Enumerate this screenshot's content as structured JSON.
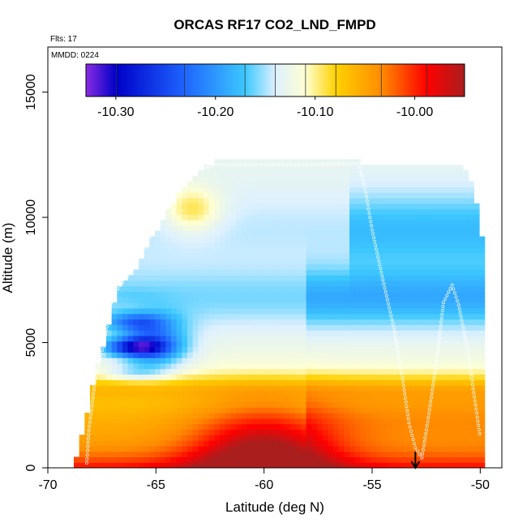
{
  "chart_data": {
    "type": "heatmap",
    "title": "ORCAS RF17 CO2_LND_FMPD",
    "annotations": {
      "flights": "Flts: 17",
      "date": "MMDD: 0224"
    },
    "xlabel": "Latitude (deg N)",
    "ylabel": "Altitude (m)",
    "xlim": [
      -70,
      -49
    ],
    "ylim": [
      0,
      16800
    ],
    "x_ticks": [
      -70,
      -65,
      -60,
      -55,
      -50
    ],
    "x_tick_labels": [
      "-70",
      "-65",
      "-60",
      "-55",
      "-50"
    ],
    "y_ticks": [
      0,
      5000,
      10000,
      15000
    ],
    "y_tick_labels": [
      "0",
      "5000",
      "10000",
      "15000"
    ],
    "colorbar": {
      "range": [
        -10.33,
        -9.95
      ],
      "ticks": [
        -10.3,
        -10.2,
        -10.1,
        -10.0
      ],
      "tick_labels": [
        "-10.30",
        "-10.20",
        "-10.10",
        "-10.00"
      ],
      "colors": [
        "#8a2be2",
        "#0000c8",
        "#1e64ff",
        "#3cc8ff",
        "#dcf0ff",
        "#ffffd2",
        "#ffd200",
        "#ff8c00",
        "#ff0000",
        "#aa1e1e"
      ]
    },
    "flight_track": [
      [
        -68.2,
        200
      ],
      [
        -68.1,
        1500
      ],
      [
        -67.8,
        3600
      ],
      [
        -67.4,
        5000
      ],
      [
        -67.0,
        6900
      ],
      [
        -66.2,
        7800
      ],
      [
        -65.1,
        9500
      ],
      [
        -64.3,
        10800
      ],
      [
        -63.6,
        11800
      ],
      [
        -62.2,
        12100
      ],
      [
        -60.5,
        12100
      ],
      [
        -58.0,
        12100
      ],
      [
        -55.6,
        12150
      ],
      [
        -55.3,
        11000
      ],
      [
        -55.0,
        9500
      ],
      [
        -54.5,
        7500
      ],
      [
        -54.0,
        5600
      ],
      [
        -53.6,
        3600
      ],
      [
        -53.3,
        1800
      ],
      [
        -53.0,
        800
      ],
      [
        -52.7,
        400
      ],
      [
        -52.4,
        2000
      ],
      [
        -52.0,
        4400
      ],
      [
        -51.7,
        6600
      ],
      [
        -51.3,
        7300
      ],
      [
        -51.0,
        6500
      ],
      [
        -50.6,
        4800
      ],
      [
        -50.3,
        3000
      ],
      [
        -50.0,
        1200
      ]
    ],
    "marker": {
      "x": -53.0,
      "y": 0,
      "label": "arrow-down"
    },
    "grid": false,
    "legend": "colorbar-top"
  }
}
